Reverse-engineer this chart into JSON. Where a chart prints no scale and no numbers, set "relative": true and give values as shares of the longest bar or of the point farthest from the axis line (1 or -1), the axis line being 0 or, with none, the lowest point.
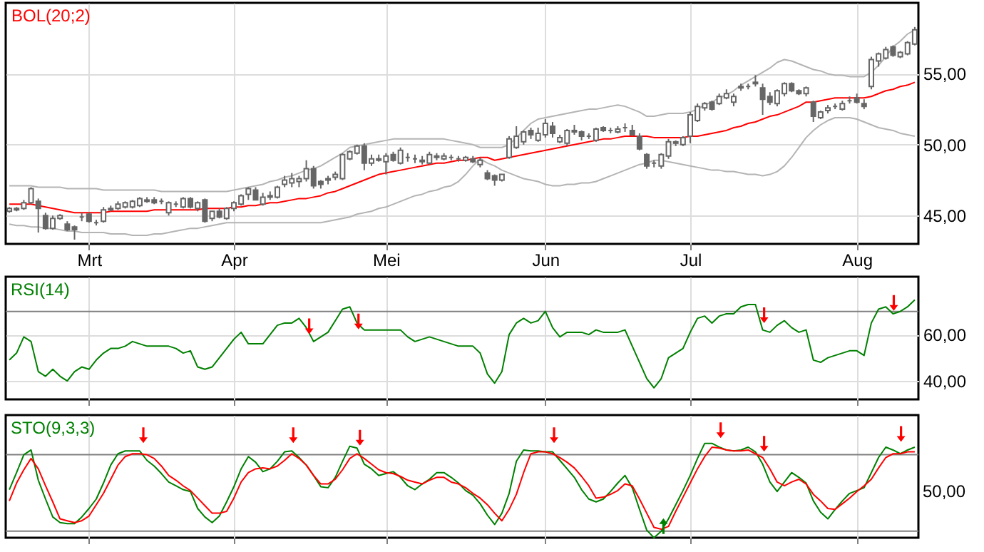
{
  "chart_data": [
    {
      "type": "candlestick",
      "title": "BOL(20;2)",
      "color": "#666666",
      "grid": true,
      "ylim": [
        43,
        60
      ],
      "categories": [
        null,
        null,
        null,
        null,
        null,
        null,
        null,
        null,
        null,
        null,
        null,
        "Mrt",
        null,
        null,
        null,
        null,
        null,
        null,
        null,
        null,
        null,
        null,
        null,
        null,
        null,
        null,
        null,
        null,
        null,
        null,
        null,
        "Apr",
        null,
        null,
        null,
        null,
        null,
        null,
        null,
        null,
        null,
        null,
        null,
        null,
        null,
        null,
        null,
        null,
        null,
        null,
        null,
        null,
        "Mei",
        null,
        null,
        null,
        null,
        null,
        null,
        null,
        null,
        null,
        null,
        null,
        null,
        null,
        null,
        null,
        null,
        null,
        null,
        null,
        null,
        null,
        "Jun",
        null,
        null,
        null,
        null,
        null,
        null,
        null,
        null,
        null,
        null,
        null,
        null,
        null,
        null,
        null,
        null,
        null,
        null,
        null,
        "Jul",
        null,
        null,
        null,
        null,
        null,
        null,
        null,
        null,
        null,
        null,
        null,
        null,
        null,
        null,
        null,
        null,
        null,
        null,
        null,
        null,
        null,
        null,
        "Aug",
        null,
        null,
        null,
        null,
        null,
        null,
        null,
        null
      ],
      "yticks": [
        {
          "value": 45,
          "label": "45,00"
        },
        {
          "value": 50,
          "label": "50,00"
        },
        {
          "value": 55,
          "label": "55,00"
        }
      ],
      "ohlc": [
        [
          45.3,
          45.6,
          45.2,
          45.5
        ],
        [
          45.4,
          45.6,
          45.3,
          45.5
        ],
        [
          45.5,
          46.1,
          45.4,
          45.9
        ],
        [
          45.9,
          47.0,
          45.8,
          46.9
        ],
        [
          46.0,
          46.2,
          43.8,
          45.5
        ],
        [
          45.0,
          45.2,
          44.0,
          44.1
        ],
        [
          44.1,
          45.0,
          44.0,
          44.8
        ],
        [
          44.8,
          45.1,
          44.7,
          45.0
        ],
        [
          44.4,
          44.6,
          43.9,
          44.0
        ],
        [
          44.2,
          44.3,
          43.3,
          44.0
        ],
        [
          44.9,
          45.2,
          44.6,
          44.9
        ],
        [
          45.1,
          45.2,
          44.5,
          44.6
        ],
        [
          44.5,
          44.7,
          44.3,
          44.5
        ],
        [
          44.6,
          45.6,
          44.5,
          45.4
        ],
        [
          45.4,
          45.7,
          45.3,
          45.5
        ],
        [
          45.5,
          46.0,
          45.4,
          45.8
        ],
        [
          45.6,
          46.0,
          45.5,
          45.9
        ],
        [
          45.6,
          46.1,
          45.5,
          46.0
        ],
        [
          45.7,
          46.3,
          45.6,
          46.2
        ],
        [
          46.1,
          46.3,
          45.9,
          46.0
        ],
        [
          46.1,
          46.3,
          45.8,
          45.9
        ],
        [
          46.0,
          46.2,
          45.8,
          46.0
        ],
        [
          45.2,
          46.0,
          45.0,
          45.9
        ],
        [
          45.8,
          46.0,
          45.6,
          45.8
        ],
        [
          45.6,
          46.3,
          45.5,
          46.2
        ],
        [
          46.2,
          46.3,
          45.5,
          45.6
        ],
        [
          45.5,
          46.0,
          45.3,
          45.9
        ],
        [
          46.1,
          46.2,
          44.5,
          44.6
        ],
        [
          44.8,
          45.3,
          44.6,
          45.3
        ],
        [
          45.3,
          45.5,
          44.8,
          44.9
        ],
        [
          44.8,
          45.6,
          44.7,
          45.5
        ],
        [
          45.5,
          46.0,
          45.3,
          45.9
        ],
        [
          45.8,
          46.5,
          45.7,
          46.4
        ],
        [
          46.5,
          47.0,
          46.1,
          46.9
        ],
        [
          46.8,
          47.0,
          46.1,
          46.1
        ],
        [
          45.8,
          46.6,
          45.7,
          46.3
        ],
        [
          46.3,
          46.7,
          46.1,
          46.4
        ],
        [
          46.3,
          47.1,
          46.2,
          47.0
        ],
        [
          47.2,
          47.8,
          47.0,
          47.5
        ],
        [
          47.3,
          48.0,
          47.0,
          47.6
        ],
        [
          47.4,
          47.8,
          47.0,
          47.6
        ],
        [
          47.6,
          48.9,
          47.4,
          48.3
        ],
        [
          48.3,
          48.5,
          46.9,
          47.1
        ],
        [
          47.4,
          47.5,
          46.9,
          47.2
        ],
        [
          47.5,
          47.8,
          47.2,
          47.6
        ],
        [
          47.7,
          48.1,
          47.5,
          47.9
        ],
        [
          47.6,
          49.4,
          47.5,
          49.3
        ],
        [
          49.0,
          49.6,
          48.9,
          49.5
        ],
        [
          49.4,
          50.0,
          49.3,
          49.9
        ],
        [
          49.9,
          50.1,
          48.2,
          48.7
        ],
        [
          48.7,
          49.3,
          48.5,
          49.0
        ],
        [
          49.0,
          49.3,
          48.8,
          48.9
        ],
        [
          48.8,
          49.4,
          47.9,
          49.2
        ],
        [
          49.3,
          49.5,
          48.8,
          48.9
        ],
        [
          48.7,
          49.8,
          48.6,
          49.6
        ],
        [
          49.1,
          49.4,
          48.8,
          49.1
        ],
        [
          49.0,
          49.3,
          48.7,
          49.0
        ],
        [
          48.8,
          49.2,
          48.6,
          48.9
        ],
        [
          48.7,
          49.5,
          48.6,
          49.3
        ],
        [
          49.1,
          49.4,
          48.9,
          49.2
        ],
        [
          49.0,
          49.4,
          48.9,
          49.2
        ],
        [
          49.1,
          49.3,
          48.9,
          49.1
        ],
        [
          49.0,
          49.2,
          48.8,
          49.0
        ],
        [
          48.9,
          49.2,
          48.8,
          49.1
        ],
        [
          49.0,
          49.2,
          48.7,
          48.8
        ],
        [
          48.6,
          49.1,
          48.4,
          48.9
        ],
        [
          48.0,
          48.2,
          47.5,
          47.6
        ],
        [
          47.8,
          47.9,
          47.1,
          47.5
        ],
        [
          47.5,
          47.9,
          47.4,
          47.9
        ],
        [
          49.1,
          50.6,
          49.0,
          50.4
        ],
        [
          49.8,
          51.3,
          49.7,
          50.6
        ],
        [
          50.2,
          51.0,
          50.0,
          50.9
        ],
        [
          51.0,
          51.2,
          50.4,
          50.7
        ],
        [
          50.3,
          51.2,
          50.2,
          50.8
        ],
        [
          50.7,
          51.8,
          50.5,
          51.5
        ],
        [
          51.3,
          51.6,
          50.5,
          50.8
        ],
        [
          50.2,
          50.7,
          50.1,
          50.5
        ],
        [
          50.1,
          51.1,
          49.9,
          51.0
        ],
        [
          51.0,
          51.4,
          50.7,
          50.9
        ],
        [
          50.9,
          51.0,
          50.3,
          50.6
        ],
        [
          50.6,
          50.8,
          50.4,
          50.6
        ],
        [
          50.3,
          51.2,
          50.2,
          51.1
        ],
        [
          51.2,
          51.3,
          50.9,
          51.0
        ],
        [
          51.0,
          51.2,
          50.8,
          51.0
        ],
        [
          50.9,
          51.3,
          50.8,
          51.1
        ],
        [
          51.2,
          51.5,
          50.9,
          51.2
        ],
        [
          51.0,
          51.4,
          50.6,
          50.7
        ],
        [
          50.6,
          50.8,
          49.6,
          49.7
        ],
        [
          49.3,
          49.4,
          48.3,
          48.5
        ],
        [
          48.7,
          48.9,
          48.4,
          48.7
        ],
        [
          48.5,
          49.4,
          48.3,
          49.3
        ],
        [
          49.2,
          50.4,
          49.0,
          50.2
        ],
        [
          50.1,
          50.3,
          49.9,
          50.2
        ],
        [
          50.0,
          50.6,
          49.9,
          50.5
        ],
        [
          50.6,
          52.3,
          50.1,
          52.1
        ],
        [
          51.7,
          52.9,
          51.6,
          52.7
        ],
        [
          52.6,
          53.0,
          52.4,
          52.9
        ],
        [
          53.0,
          53.1,
          52.4,
          52.5
        ],
        [
          52.9,
          53.6,
          52.8,
          53.4
        ],
        [
          53.3,
          53.9,
          53.2,
          53.6
        ],
        [
          53.0,
          53.6,
          52.7,
          53.4
        ],
        [
          54.0,
          54.3,
          53.8,
          54.1
        ],
        [
          54.1,
          54.3,
          53.9,
          54.1
        ],
        [
          54.3,
          54.9,
          54.1,
          54.4
        ],
        [
          54.0,
          54.3,
          52.1,
          53.2
        ],
        [
          53.4,
          53.7,
          52.8,
          53.0
        ],
        [
          52.9,
          53.9,
          52.7,
          53.8
        ],
        [
          53.6,
          54.4,
          53.4,
          54.3
        ],
        [
          54.3,
          54.4,
          53.7,
          53.8
        ],
        [
          53.8,
          53.9,
          53.5,
          53.6
        ],
        [
          53.6,
          54.1,
          53.4,
          54.0
        ],
        [
          53.0,
          53.1,
          51.6,
          52.0
        ],
        [
          51.9,
          52.4,
          51.8,
          52.3
        ],
        [
          52.4,
          52.8,
          52.2,
          52.6
        ],
        [
          52.7,
          52.9,
          52.5,
          52.7
        ],
        [
          52.5,
          53.1,
          52.4,
          52.9
        ],
        [
          53.1,
          53.4,
          52.9,
          53.1
        ],
        [
          53.3,
          53.6,
          52.9,
          53.0
        ],
        [
          52.9,
          53.2,
          52.5,
          52.7
        ],
        [
          54.1,
          56.2,
          53.9,
          56.0
        ],
        [
          55.9,
          56.5,
          55.5,
          56.4
        ],
        [
          56.1,
          56.9,
          56.0,
          56.7
        ],
        [
          56.9,
          57.0,
          56.2,
          56.3
        ],
        [
          56.2,
          56.6,
          56.1,
          56.5
        ],
        [
          56.4,
          57.3,
          56.3,
          57.2
        ],
        [
          57.1,
          58.3,
          57.0,
          58.1
        ]
      ],
      "series": [
        {
          "type": "line",
          "color": "#ff0000",
          "values": [
            45.8,
            45.8,
            45.8,
            45.8,
            45.7,
            45.6,
            45.5,
            45.4,
            45.3,
            45.2,
            45.2,
            45.2,
            45.2,
            45.2,
            45.3,
            45.3,
            45.3,
            45.3,
            45.3,
            45.3,
            45.4,
            45.4,
            45.4,
            45.4,
            45.4,
            45.4,
            45.4,
            45.5,
            45.5,
            45.5,
            45.5,
            45.6,
            45.6,
            45.7,
            45.7,
            45.8,
            45.9,
            45.9,
            46.0,
            46.1,
            46.2,
            46.2,
            46.3,
            46.4,
            46.6,
            46.7,
            46.9,
            47.1,
            47.3,
            47.5,
            47.7,
            47.9,
            48.0,
            48.1,
            48.2,
            48.3,
            48.4,
            48.5,
            48.6,
            48.7,
            48.7,
            48.8,
            48.9,
            48.9,
            49.0,
            49.1,
            49.1,
            48.9,
            49.0,
            49.1,
            49.2,
            49.3,
            49.4,
            49.5,
            49.6,
            49.7,
            49.8,
            49.9,
            50.0,
            50.1,
            50.2,
            50.3,
            50.4,
            50.4,
            50.5,
            50.6,
            50.6,
            50.6,
            50.6,
            50.5,
            50.5,
            50.5,
            50.5,
            50.5,
            50.6,
            50.6,
            50.7,
            50.8,
            50.9,
            51.0,
            51.2,
            51.3,
            51.5,
            51.6,
            51.8,
            52.0,
            52.1,
            52.3,
            52.5,
            52.7,
            53.0,
            53.0,
            53.1,
            53.2,
            53.3,
            53.3,
            53.3,
            53.3,
            53.3,
            53.4,
            53.6,
            53.8,
            53.9,
            54.1,
            54.2,
            54.4
          ]
        },
        {
          "type": "line",
          "color": "#b4b4b4",
          "values": [
            47.1,
            47.1,
            47.1,
            47.1,
            47.0,
            47.0,
            47.0,
            47.0,
            46.9,
            46.9,
            46.9,
            46.9,
            46.9,
            46.8,
            46.8,
            46.8,
            46.8,
            46.8,
            46.8,
            46.8,
            46.8,
            46.7,
            46.7,
            46.7,
            46.7,
            46.7,
            46.7,
            46.7,
            46.7,
            46.7,
            46.7,
            46.8,
            46.9,
            47.0,
            47.1,
            47.2,
            47.4,
            47.5,
            47.7,
            47.8,
            48.0,
            48.2,
            48.3,
            48.5,
            48.8,
            49.1,
            49.4,
            49.8,
            49.9,
            50.0,
            50.1,
            50.2,
            50.3,
            50.4,
            50.4,
            50.4,
            50.4,
            50.4,
            50.4,
            50.4,
            50.4,
            50.3,
            50.2,
            50.1,
            50.0,
            49.8,
            49.8,
            49.8,
            49.8,
            50.0,
            50.5,
            51.0,
            51.5,
            51.8,
            51.9,
            52.0,
            52.1,
            52.2,
            52.3,
            52.4,
            52.5,
            52.5,
            52.6,
            52.7,
            52.8,
            52.7,
            52.5,
            52.3,
            52.0,
            52.0,
            52.1,
            52.2,
            52.2,
            52.2,
            52.3,
            52.5,
            52.8,
            53.0,
            53.3,
            53.5,
            53.8,
            54.2,
            54.5,
            54.8,
            55.1,
            55.4,
            55.8,
            56.0,
            55.9,
            55.7,
            55.5,
            55.3,
            55.2,
            55.0,
            54.9,
            54.9,
            54.8,
            54.8,
            54.8,
            55.1,
            55.6,
            56.2,
            56.9,
            57.3,
            57.8,
            58.1
          ]
        },
        {
          "type": "line",
          "color": "#b4b4b4",
          "values": [
            44.4,
            44.3,
            44.3,
            44.2,
            44.2,
            44.1,
            44.1,
            44.0,
            43.9,
            43.9,
            43.8,
            43.8,
            43.8,
            43.8,
            43.7,
            43.7,
            43.7,
            43.6,
            43.6,
            43.6,
            43.7,
            43.7,
            43.8,
            43.9,
            44.0,
            44.1,
            44.1,
            44.2,
            44.3,
            44.4,
            44.5,
            44.5,
            44.5,
            44.5,
            44.5,
            44.5,
            44.5,
            44.5,
            44.5,
            44.5,
            44.5,
            44.5,
            44.5,
            44.5,
            44.6,
            44.7,
            44.8,
            44.9,
            45.1,
            45.2,
            45.3,
            45.5,
            45.6,
            45.8,
            46.0,
            46.2,
            46.4,
            46.5,
            46.7,
            46.8,
            47.0,
            47.1,
            47.4,
            47.9,
            48.5,
            49.0,
            48.7,
            48.5,
            48.2,
            48.0,
            47.8,
            47.6,
            47.5,
            47.4,
            47.2,
            47.1,
            47.1,
            47.2,
            47.2,
            47.3,
            47.3,
            47.4,
            47.6,
            47.8,
            48.0,
            48.2,
            48.4,
            48.6,
            48.7,
            48.9,
            48.9,
            48.8,
            48.7,
            48.6,
            48.5,
            48.4,
            48.3,
            48.2,
            48.2,
            48.1,
            48.1,
            48.0,
            47.9,
            47.9,
            47.8,
            47.9,
            48.1,
            48.5,
            49.1,
            49.8,
            50.5,
            51.0,
            51.4,
            51.7,
            51.9,
            51.9,
            51.9,
            51.8,
            51.6,
            51.4,
            51.2,
            51.1,
            51.0,
            50.8,
            50.7,
            50.6
          ]
        }
      ]
    },
    {
      "type": "line",
      "title": "RSI(14)",
      "grid": true,
      "tick_labels": "y",
      "ylim": [
        32,
        85
      ],
      "categories": [
        null,
        null,
        null,
        null,
        null,
        null,
        null,
        null,
        null,
        null,
        null,
        null,
        null,
        null,
        null,
        null,
        null,
        null,
        null,
        null,
        null,
        null,
        null,
        null,
        null,
        null,
        null,
        null,
        null,
        null,
        null,
        null,
        null,
        null,
        null,
        null,
        null,
        null,
        null,
        null,
        null,
        null,
        null,
        null,
        null,
        null,
        null,
        null,
        null,
        null,
        null,
        null,
        null,
        null,
        null,
        null,
        null,
        null,
        null,
        null,
        null,
        null,
        null,
        null,
        null,
        null,
        null,
        null,
        null,
        null,
        null,
        null,
        null,
        null,
        null,
        null,
        null,
        null,
        null,
        null,
        null,
        null,
        null,
        null,
        null,
        null,
        null,
        null,
        null,
        null,
        null,
        null,
        null,
        null,
        null,
        null,
        null,
        null,
        null,
        null,
        null,
        null,
        null,
        null,
        null,
        null,
        null,
        null,
        null,
        null,
        null,
        null,
        null,
        null,
        null,
        null,
        null,
        null,
        null,
        null,
        null,
        null,
        null,
        null,
        null,
        null
      ],
      "yticks": [
        {
          "value": 40,
          "label": "40,00"
        },
        {
          "value": 60,
          "label": "60,00"
        }
      ],
      "ref_lines": [
        {
          "axis": "y",
          "value": 70,
          "color": "#808080"
        }
      ],
      "series": [
        {
          "color": "#008000",
          "values": [
            49,
            52,
            59,
            57,
            44,
            42,
            45,
            42,
            40,
            44,
            46,
            45,
            49,
            52,
            54,
            54,
            55,
            57,
            56,
            55,
            55,
            55,
            55,
            54,
            52,
            53,
            46,
            45,
            46,
            50,
            54,
            58,
            61,
            56,
            56,
            56,
            60,
            64,
            65,
            65,
            67,
            63,
            57,
            59,
            61,
            66,
            71,
            72,
            65,
            62,
            62,
            62,
            62,
            62,
            62,
            59,
            57,
            58,
            59,
            58,
            57,
            56,
            55,
            55,
            55,
            52,
            43,
            39,
            44,
            60,
            65,
            67,
            65,
            66,
            70,
            63,
            59,
            61,
            61,
            61,
            60,
            62,
            61,
            61,
            61,
            62,
            55,
            48,
            41,
            37,
            41,
            50,
            52,
            54,
            61,
            67,
            68,
            65,
            68,
            69,
            69,
            72,
            73,
            73,
            62,
            61,
            64,
            66,
            63,
            61,
            62,
            49,
            48,
            50,
            51,
            52,
            53,
            53,
            51,
            65,
            71,
            72,
            69,
            70,
            72,
            75
          ]
        }
      ]
    },
    {
      "type": "line",
      "title": "STO(9,3,3)",
      "grid": "x",
      "tick_labels": "y",
      "relative": true,
      "categories": [
        null,
        null,
        null,
        null,
        null,
        null,
        null,
        null,
        null,
        null,
        null,
        null,
        null,
        null,
        null,
        null,
        null,
        null,
        null,
        null,
        null,
        null,
        null,
        null,
        null,
        null,
        null,
        null,
        null,
        null,
        null,
        null,
        null,
        null,
        null,
        null,
        null,
        null,
        null,
        null,
        null,
        null,
        null,
        null,
        null,
        null,
        null,
        null,
        null,
        null,
        null,
        null,
        null,
        null,
        null,
        null,
        null,
        null,
        null,
        null,
        null,
        null,
        null,
        null,
        null,
        null,
        null,
        null,
        null,
        null,
        null,
        null,
        null,
        null,
        null,
        null,
        null,
        null,
        null,
        null,
        null,
        null,
        null,
        null,
        null,
        null,
        null,
        null,
        null,
        null,
        null,
        null,
        null,
        null,
        null,
        null,
        null,
        null,
        null,
        null,
        null,
        null,
        null,
        null,
        null,
        null,
        null,
        null,
        null,
        null,
        null,
        null,
        null,
        null,
        null,
        null,
        null,
        null,
        null,
        null,
        null,
        null,
        null,
        null,
        null,
        null
      ],
      "ref_lines": [
        {
          "axis": "y",
          "value": 0.88,
          "color": "#808080"
        },
        {
          "axis": "y",
          "value": 0.07,
          "color": "#808080"
        }
      ],
      "annotations": [
        "50,00"
      ],
      "series": [
        {
          "color": "#008000",
          "values": [
            0.51,
            0.69,
            0.88,
            0.93,
            0.61,
            0.41,
            0.22,
            0.16,
            0.15,
            0.15,
            0.22,
            0.31,
            0.41,
            0.58,
            0.77,
            0.89,
            0.92,
            0.92,
            0.92,
            0.82,
            0.76,
            0.68,
            0.59,
            0.55,
            0.51,
            0.49,
            0.31,
            0.22,
            0.16,
            0.23,
            0.38,
            0.54,
            0.73,
            0.86,
            0.8,
            0.7,
            0.73,
            0.81,
            0.91,
            0.92,
            0.85,
            0.77,
            0.66,
            0.54,
            0.53,
            0.64,
            0.81,
            0.97,
            0.95,
            0.78,
            0.73,
            0.66,
            0.68,
            0.7,
            0.64,
            0.55,
            0.51,
            0.57,
            0.62,
            0.69,
            0.69,
            0.64,
            0.58,
            0.5,
            0.45,
            0.36,
            0.24,
            0.14,
            0.26,
            0.47,
            0.81,
            0.93,
            0.92,
            0.92,
            0.91,
            0.91,
            0.82,
            0.73,
            0.64,
            0.51,
            0.41,
            0.38,
            0.41,
            0.49,
            0.58,
            0.66,
            0.53,
            0.3,
            0.08,
            0,
            0.07,
            0.2,
            0.35,
            0.5,
            0.66,
            0.84,
            1,
            1,
            0.96,
            0.93,
            0.92,
            0.93,
            0.96,
            0.91,
            0.78,
            0.59,
            0.49,
            0.59,
            0.69,
            0.64,
            0.58,
            0.39,
            0.27,
            0.2,
            0.3,
            0.39,
            0.47,
            0.5,
            0.53,
            0.69,
            0.85,
            0.96,
            0.93,
            0.89,
            0.93,
            0.96
          ]
        },
        {
          "color": "#ff0000",
          "values": [
            0.39,
            0.58,
            0.72,
            0.84,
            0.73,
            0.55,
            0.38,
            0.2,
            0.18,
            0.16,
            0.18,
            0.23,
            0.35,
            0.47,
            0.62,
            0.77,
            0.86,
            0.89,
            0.89,
            0.88,
            0.84,
            0.76,
            0.66,
            0.61,
            0.55,
            0.5,
            0.42,
            0.34,
            0.26,
            0.26,
            0.28,
            0.42,
            0.59,
            0.69,
            0.73,
            0.74,
            0.73,
            0.76,
            0.82,
            0.89,
            0.84,
            0.77,
            0.66,
            0.57,
            0.57,
            0.62,
            0.72,
            0.84,
            0.89,
            0.84,
            0.78,
            0.72,
            0.69,
            0.68,
            0.65,
            0.61,
            0.59,
            0.57,
            0.61,
            0.64,
            0.64,
            0.59,
            0.57,
            0.53,
            0.47,
            0.42,
            0.35,
            0.26,
            0.18,
            0.3,
            0.46,
            0.69,
            0.89,
            0.91,
            0.91,
            0.89,
            0.85,
            0.8,
            0.74,
            0.65,
            0.55,
            0.42,
            0.43,
            0.46,
            0.5,
            0.57,
            0.55,
            0.41,
            0.26,
            0.11,
            0.09,
            0.12,
            0.28,
            0.43,
            0.58,
            0.73,
            0.86,
            0.96,
            0.95,
            0.93,
            0.92,
            0.92,
            0.93,
            0.89,
            0.85,
            0.73,
            0.59,
            0.55,
            0.59,
            0.62,
            0.57,
            0.46,
            0.39,
            0.31,
            0.3,
            0.36,
            0.42,
            0.49,
            0.55,
            0.62,
            0.74,
            0.85,
            0.89,
            0.89,
            0.91,
            0.91
          ]
        }
      ]
    }
  ]
}
